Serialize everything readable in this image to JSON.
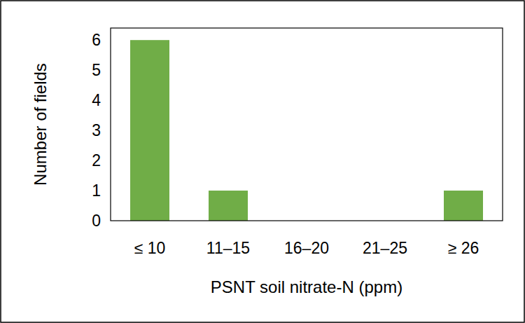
{
  "chart_data": {
    "type": "bar",
    "x_label": "PSNT soil nitrate-N (ppm)",
    "y_label": "Number of fields",
    "categories": [
      "≤ 10",
      "11–15",
      "16–20",
      "21–25",
      "≥ 26"
    ],
    "values": [
      6,
      1,
      0,
      0,
      1
    ],
    "color": "#70ad47",
    "ylim": [
      0,
      6.4
    ],
    "yticks": [
      0,
      1,
      2,
      3,
      4,
      5,
      6
    ],
    "grid": false
  }
}
